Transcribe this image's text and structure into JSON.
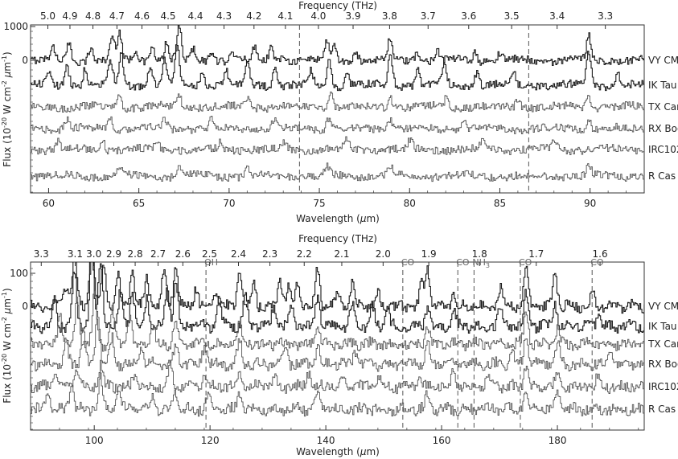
{
  "chart_data": [
    {
      "type": "line",
      "x_label": "Wavelength (μm)",
      "x_label_pre": "Wavelength (",
      "x_label_mu": "μ",
      "x_label_post": "m)",
      "top_label": "Frequency (THz)",
      "y_label": "Flux (10⁻²⁰ W cm⁻² μm⁻¹)",
      "y_label_pre": "Flux (10",
      "y_label_exp1": "-20",
      "y_label_mid": " W cm",
      "y_label_exp2": "-2",
      "y_label_mu": " μ",
      "y_label_m": "m",
      "y_label_exp3": "-1",
      "y_label_close": ")",
      "xlim": [
        59,
        93
      ],
      "x_ticks": [
        60,
        65,
        70,
        75,
        80,
        85,
        90
      ],
      "x_tick_labels": [
        "60",
        "65",
        "70",
        "75",
        "80",
        "85",
        "90"
      ],
      "freq_ticks": [
        "5.0",
        "4.9",
        "4.8",
        "4.7",
        "4.6",
        "4.5",
        "4.4",
        "4.3",
        "4.2",
        "4.1",
        "4.0",
        "3.9",
        "3.8",
        "3.7",
        "3.6",
        "3.5",
        "3.4",
        "3.3"
      ],
      "y_tick_labels": [
        "1000",
        "0"
      ],
      "y_tick_values": [
        1000,
        0
      ],
      "dashed_lines": [
        73.9,
        86.6
      ],
      "series": [
        {
          "name": "VY CMa",
          "label": "VY CMa",
          "color": "#1a1a1a",
          "baseline_frac": 0.36,
          "scale": 1.0,
          "peaks": [
            [
              60.2,
              0.45
            ],
            [
              61.1,
              0.6
            ],
            [
              62.3,
              0.5
            ],
            [
              63.5,
              0.85
            ],
            [
              63.9,
              1.0
            ],
            [
              64.8,
              0.4
            ],
            [
              65.7,
              0.55
            ],
            [
              66.5,
              0.6
            ],
            [
              67.2,
              1.2
            ],
            [
              68.0,
              0.4
            ],
            [
              69.0,
              0.35
            ],
            [
              70.1,
              0.4
            ],
            [
              71.4,
              0.45
            ],
            [
              72.3,
              0.5
            ],
            [
              73.0,
              0.3
            ],
            [
              75.4,
              0.7
            ],
            [
              75.8,
              0.55
            ],
            [
              77.0,
              0.3
            ],
            [
              78.9,
              0.8
            ],
            [
              80.4,
              0.35
            ],
            [
              81.5,
              0.4
            ],
            [
              83.6,
              0.3
            ],
            [
              85.0,
              0.3
            ],
            [
              89.9,
              0.9
            ]
          ]
        },
        {
          "name": "IK Tau",
          "label": "IK Tau",
          "color": "#1a1a1a",
          "baseline_frac": 0.12,
          "scale": 1.0,
          "peaks": [
            [
              60.0,
              0.5
            ],
            [
              61.0,
              0.7
            ],
            [
              62.0,
              0.6
            ],
            [
              63.4,
              0.9
            ],
            [
              64.0,
              1.1
            ],
            [
              65.6,
              0.7
            ],
            [
              66.4,
              0.9
            ],
            [
              67.1,
              1.4
            ],
            [
              68.5,
              0.6
            ],
            [
              69.8,
              0.6
            ],
            [
              71.0,
              0.8
            ],
            [
              72.5,
              0.6
            ],
            [
              74.5,
              0.5
            ],
            [
              75.5,
              0.9
            ],
            [
              76.5,
              0.5
            ],
            [
              78.9,
              1.1
            ],
            [
              80.4,
              0.6
            ],
            [
              81.9,
              0.7
            ],
            [
              83.7,
              0.5
            ],
            [
              85.7,
              0.5
            ],
            [
              89.9,
              1.2
            ],
            [
              91.5,
              0.5
            ]
          ]
        },
        {
          "name": "TX Cam",
          "label": "TX Cam",
          "color": "#555555",
          "baseline_frac": 0.32,
          "scale": 1.0,
          "peaks": [
            [
              63.9,
              0.4
            ],
            [
              67.2,
              0.4
            ],
            [
              71.0,
              0.3
            ],
            [
              75.6,
              0.6
            ],
            [
              78.9,
              0.4
            ],
            [
              82.0,
              0.3
            ],
            [
              86.0,
              0.3
            ],
            [
              89.9,
              0.4
            ]
          ]
        },
        {
          "name": "RX Boo",
          "label": "RX Boo",
          "color": "#555555",
          "baseline_frac": 0.4,
          "scale": 1.0,
          "peaks": [
            [
              61.0,
              0.35
            ],
            [
              63.4,
              0.4
            ],
            [
              66.4,
              0.35
            ],
            [
              69.0,
              0.3
            ],
            [
              72.5,
              0.35
            ],
            [
              75.5,
              0.4
            ],
            [
              78.9,
              0.35
            ],
            [
              83.0,
              0.3
            ],
            [
              89.9,
              0.35
            ]
          ]
        },
        {
          "name": "IRC10216",
          "label": "IRC10216",
          "color": "#555555",
          "baseline_frac": 0.6,
          "scale": 1.0,
          "peaks": [
            [
              60.5,
              0.3
            ],
            [
              63.0,
              0.3
            ],
            [
              66.0,
              0.3
            ],
            [
              69.5,
              0.3
            ],
            [
              73.0,
              0.25
            ],
            [
              76.5,
              0.3
            ],
            [
              80.0,
              0.3
            ],
            [
              84.0,
              0.3
            ],
            [
              88.0,
              0.3
            ]
          ]
        },
        {
          "name": "R Cas",
          "label": "R Cas",
          "color": "#555555",
          "baseline_frac": 0.5,
          "scale": 1.0,
          "peaks": [
            [
              63.9,
              0.35
            ],
            [
              67.2,
              0.35
            ],
            [
              71.0,
              0.3
            ],
            [
              75.4,
              0.35
            ],
            [
              78.9,
              0.35
            ],
            [
              89.9,
              0.45
            ]
          ]
        }
      ]
    },
    {
      "type": "line",
      "x_label": "Wavelength (μm)",
      "x_label_pre": "Wavelength (",
      "x_label_mu": "μ",
      "x_label_post": "m)",
      "top_label": "Frequency (THz)",
      "y_label": "Flux (10⁻²⁰ W cm⁻² μm⁻¹)",
      "y_label_pre": "Flux (10",
      "y_label_exp1": "-20",
      "y_label_mid": " W cm",
      "y_label_exp2": "-2",
      "y_label_mu": " μ",
      "y_label_m": "m",
      "y_label_exp3": "-1",
      "y_label_close": ")",
      "xlim": [
        89,
        195
      ],
      "x_ticks": [
        100,
        120,
        140,
        160,
        180
      ],
      "x_tick_labels": [
        "100",
        "120",
        "140",
        "160",
        "180"
      ],
      "freq_ticks": [
        "3.3",
        "3.1",
        "3.0",
        "2.9",
        "2.8",
        "2.7",
        "2.6",
        "2.5",
        "2.4",
        "2.3",
        "2.2",
        "2.1",
        "2.0",
        "1.9",
        "1.8",
        "1.7",
        "1.6"
      ],
      "y_tick_labels": [
        "100",
        "0"
      ],
      "y_tick_values": [
        100,
        0
      ],
      "dashed_lines": [
        {
          "x": 119.3,
          "label": "OH"
        },
        {
          "x": 153.3,
          "label": "CO"
        },
        {
          "x": 162.8,
          "label": "CO"
        },
        {
          "x": 165.6,
          "label": "NH3",
          "label_main": "NH",
          "label_sub": "3"
        },
        {
          "x": 173.6,
          "label": "CO"
        },
        {
          "x": 186.0,
          "label": "CO"
        }
      ],
      "series": [
        {
          "name": "VY CMa",
          "label": "VY CMa",
          "color": "#1a1a1a",
          "baseline_frac": 0.25,
          "scale": 1.0,
          "peaks": [
            [
              95.0,
              0.6
            ],
            [
              96.5,
              1.4
            ],
            [
              99.5,
              2.0
            ],
            [
              101.5,
              1.2
            ],
            [
              104.0,
              0.8
            ],
            [
              106.5,
              1.0
            ],
            [
              109.0,
              0.8
            ],
            [
              112.0,
              1.0
            ],
            [
              114.0,
              1.2
            ],
            [
              117.5,
              0.5
            ],
            [
              121.0,
              0.5
            ],
            [
              125.0,
              1.1
            ],
            [
              127.5,
              0.6
            ],
            [
              132.0,
              0.7
            ],
            [
              133.5,
              0.6
            ],
            [
              135.0,
              0.6
            ],
            [
              138.5,
              1.0
            ],
            [
              142.0,
              0.3
            ],
            [
              144.5,
              0.6
            ],
            [
              149.0,
              0.3
            ],
            [
              156.5,
              0.6
            ],
            [
              157.5,
              1.0
            ],
            [
              162.0,
              0.4
            ],
            [
              170.0,
              0.5
            ],
            [
              174.5,
              1.1
            ],
            [
              179.5,
              1.0
            ],
            [
              186.0,
              0.3
            ]
          ]
        },
        {
          "name": "IK Tau",
          "label": "IK Tau",
          "color": "#1a1a1a",
          "baseline_frac": 0.3,
          "scale": 1.0,
          "peaks": [
            [
              93.0,
              0.8
            ],
            [
              96.5,
              1.5
            ],
            [
              99.5,
              2.0
            ],
            [
              101.0,
              1.8
            ],
            [
              104.5,
              1.0
            ],
            [
              106.5,
              0.9
            ],
            [
              109.0,
              0.8
            ],
            [
              112.5,
              1.0
            ],
            [
              114.0,
              1.3
            ],
            [
              121.5,
              0.7
            ],
            [
              126.0,
              0.8
            ],
            [
              131.0,
              0.6
            ],
            [
              134.0,
              0.6
            ],
            [
              138.5,
              0.8
            ],
            [
              144.5,
              0.6
            ],
            [
              148.0,
              0.5
            ],
            [
              150.5,
              0.5
            ],
            [
              157.5,
              0.6
            ],
            [
              162.0,
              0.5
            ],
            [
              170.0,
              0.5
            ],
            [
              174.5,
              0.9
            ],
            [
              179.5,
              0.6
            ],
            [
              187.0,
              0.3
            ]
          ]
        },
        {
          "name": "TX Cam",
          "label": "TX Cam",
          "color": "#555555",
          "baseline_frac": 0.35,
          "scale": 1.0,
          "peaks": [
            [
              94.0,
              0.8
            ],
            [
              97.0,
              1.3
            ],
            [
              100.0,
              1.5
            ],
            [
              103.0,
              0.9
            ],
            [
              106.0,
              0.7
            ],
            [
              110.0,
              0.5
            ],
            [
              114.0,
              0.6
            ],
            [
              125.0,
              0.5
            ],
            [
              138.5,
              0.6
            ],
            [
              157.5,
              0.5
            ],
            [
              174.5,
              0.9
            ],
            [
              180.0,
              0.4
            ]
          ]
        },
        {
          "name": "RX Boo",
          "label": "RX Boo",
          "color": "#555555",
          "baseline_frac": 0.4,
          "scale": 1.0,
          "peaks": [
            [
              95.0,
              0.6
            ],
            [
              98.0,
              1.0
            ],
            [
              100.5,
              1.4
            ],
            [
              103.0,
              0.7
            ],
            [
              108.0,
              0.5
            ],
            [
              114.0,
              0.5
            ],
            [
              119.0,
              0.5
            ],
            [
              125.0,
              0.6
            ],
            [
              133.0,
              0.4
            ],
            [
              138.5,
              0.5
            ],
            [
              145.0,
              0.4
            ],
            [
              157.5,
              0.5
            ],
            [
              172.0,
              0.4
            ],
            [
              174.5,
              0.8
            ],
            [
              180.0,
              0.5
            ],
            [
              189.0,
              0.4
            ]
          ]
        },
        {
          "name": "IRC10216",
          "label": "IRC10216",
          "color": "#555555",
          "baseline_frac": 0.5,
          "scale": 1.0,
          "peaks": [
            [
              93.0,
              0.4
            ],
            [
              97.0,
              0.5
            ],
            [
              101.0,
              0.6
            ],
            [
              107.0,
              0.4
            ],
            [
              113.0,
              0.5
            ],
            [
              119.0,
              0.4
            ],
            [
              125.0,
              0.4
            ],
            [
              131.0,
              0.3
            ],
            [
              137.0,
              0.4
            ],
            [
              143.0,
              0.3
            ],
            [
              149.0,
              0.3
            ],
            [
              156.0,
              0.3
            ],
            [
              162.0,
              0.4
            ],
            [
              168.0,
              0.3
            ],
            [
              174.5,
              0.6
            ],
            [
              180.0,
              0.4
            ],
            [
              187.0,
              0.3
            ]
          ]
        },
        {
          "name": "R Cas",
          "label": "R Cas",
          "color": "#555555",
          "baseline_frac": 0.55,
          "scale": 1.0,
          "peaks": [
            [
              92.0,
              0.5
            ],
            [
              96.0,
              0.6
            ],
            [
              101.0,
              0.8
            ],
            [
              104.0,
              0.5
            ],
            [
              110.0,
              0.4
            ],
            [
              114.0,
              0.5
            ],
            [
              119.5,
              0.4
            ],
            [
              125.0,
              0.5
            ],
            [
              138.5,
              0.4
            ],
            [
              157.5,
              0.4
            ],
            [
              174.5,
              0.5
            ],
            [
              180.0,
              0.4
            ]
          ]
        }
      ]
    }
  ]
}
